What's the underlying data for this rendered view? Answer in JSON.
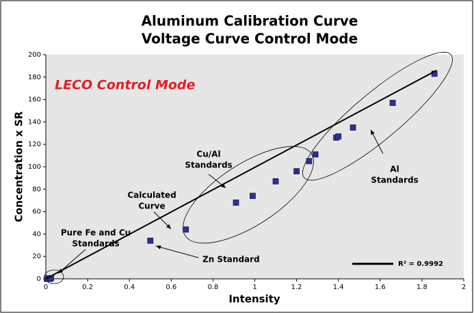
{
  "chart_data": {
    "type": "scatter",
    "title": [
      "Aluminum Calibration Curve",
      "Voltage Curve Control Mode"
    ],
    "x_label": "Intensity",
    "y_label": "Concentration x SR",
    "xlim": [
      0,
      2
    ],
    "ylim": [
      0,
      200
    ],
    "xticks": [
      0,
      0.2,
      0.4,
      0.6,
      0.8,
      1,
      1.2,
      1.4,
      1.6,
      1.8,
      2
    ],
    "yticks": [
      0,
      20,
      40,
      60,
      80,
      100,
      120,
      140,
      160,
      180,
      200
    ],
    "series": [
      {
        "color": "#2e3192",
        "x": [
          0.005,
          0.012,
          0.018,
          0.025,
          0.5,
          0.67,
          0.91,
          0.99,
          1.1,
          1.2,
          1.26,
          1.29,
          1.39,
          1.4,
          1.47,
          1.66,
          1.86
        ],
        "values": [
          0,
          0.5,
          0,
          0.5,
          34,
          44,
          68,
          74,
          87,
          96,
          105,
          111,
          126,
          127,
          135,
          157,
          183
        ]
      },
      {
        "name": "R² = 0.9992",
        "type": "line",
        "color": "#000000",
        "x": [
          0,
          1.87
        ],
        "values": [
          0,
          186
        ]
      }
    ],
    "annotations": [
      [
        "LECO Control Mode"
      ],
      [
        "Cu/Al",
        "Standards"
      ],
      [
        "Calculated",
        "Curve"
      ],
      [
        "Pure Fe and Cu",
        "Standards"
      ],
      [
        "Zn Standard"
      ],
      [
        "Al",
        "Standards"
      ]
    ]
  }
}
